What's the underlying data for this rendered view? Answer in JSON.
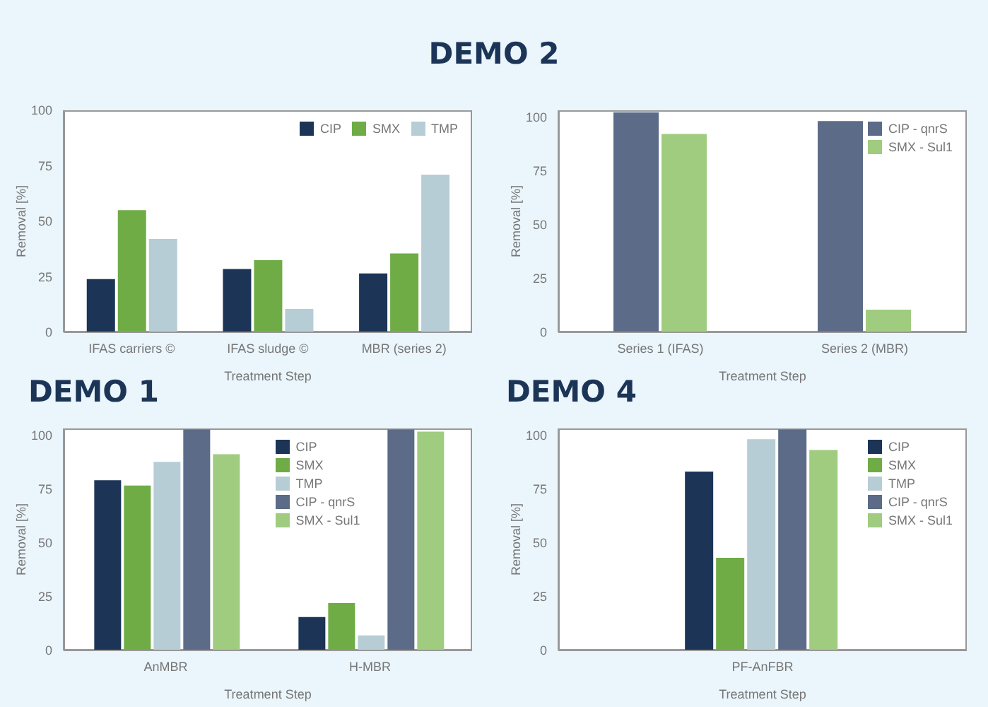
{
  "chart_data": [
    {
      "type": "bar",
      "title": "DEMO 2",
      "xlabel": "Treatment Step",
      "ylabel": "Removal [%]",
      "categories": [
        "IFAS carriers ©",
        "IFAS sludge ©",
        "MBR (series 2)"
      ],
      "series": [
        {
          "name": "CIP",
          "color": "#1c3557",
          "values": [
            24,
            28.5,
            26.5
          ]
        },
        {
          "name": "SMX",
          "color": "#6fac46",
          "values": [
            55,
            32.5,
            35.5
          ]
        },
        {
          "name": "TMP",
          "color": "#b7cdd6",
          "values": [
            42,
            10.5,
            71
          ]
        }
      ],
      "ylim": [
        0,
        100
      ],
      "yticks": [
        0,
        25,
        50,
        75,
        100
      ],
      "legend": "top right"
    },
    {
      "type": "bar",
      "xlabel": "Treatment Step",
      "ylabel": "Removal [%]",
      "categories": [
        "Series 1 (IFAS)",
        "Series 2 (MBR)"
      ],
      "series": [
        {
          "name": "CIP - qnrS",
          "color": "#5b6b88",
          "values": [
            102,
            98
          ]
        },
        {
          "name": "SMX - Sul1",
          "color": "#9fcc7f",
          "values": [
            92,
            10.5
          ]
        }
      ],
      "ylim": [
        0,
        103
      ],
      "yticks": [
        0,
        25,
        50,
        75,
        100
      ],
      "legend": "top right"
    },
    {
      "type": "bar",
      "title": "DEMO 1",
      "xlabel": "Treatment Step",
      "ylabel": "Removal [%]",
      "categories": [
        "AnMBR",
        "H-MBR"
      ],
      "series": [
        {
          "name": "CIP",
          "color": "#1c3557",
          "values": [
            79,
            15.5
          ]
        },
        {
          "name": "SMX",
          "color": "#6fac46",
          "values": [
            76.5,
            22
          ]
        },
        {
          "name": "TMP",
          "color": "#b7cdd6",
          "values": [
            87.5,
            7
          ]
        },
        {
          "name": "CIP - qnrS",
          "color": "#5b6b88",
          "values": [
            102.5,
            102.5
          ]
        },
        {
          "name": "SMX - Sul1",
          "color": "#9fcc7f",
          "values": [
            91,
            101.5
          ]
        }
      ],
      "ylim": [
        0,
        103
      ],
      "yticks": [
        0,
        25,
        50,
        75,
        100
      ],
      "legend": "top"
    },
    {
      "type": "bar",
      "title": "DEMO 4",
      "xlabel": "Treatment Step",
      "ylabel": "Removal [%]",
      "categories": [
        "PF-AnFBR"
      ],
      "series": [
        {
          "name": "CIP",
          "color": "#1c3557",
          "values": [
            83
          ]
        },
        {
          "name": "SMX",
          "color": "#6fac46",
          "values": [
            43
          ]
        },
        {
          "name": "TMP",
          "color": "#b7cdd6",
          "values": [
            98
          ]
        },
        {
          "name": "CIP - qnrS",
          "color": "#5b6b88",
          "values": [
            102.5
          ]
        },
        {
          "name": "SMX - Sul1",
          "color": "#9fcc7f",
          "values": [
            93
          ]
        }
      ],
      "ylim": [
        0,
        103
      ],
      "yticks": [
        0,
        25,
        50,
        75,
        100
      ],
      "legend": "top right"
    }
  ]
}
